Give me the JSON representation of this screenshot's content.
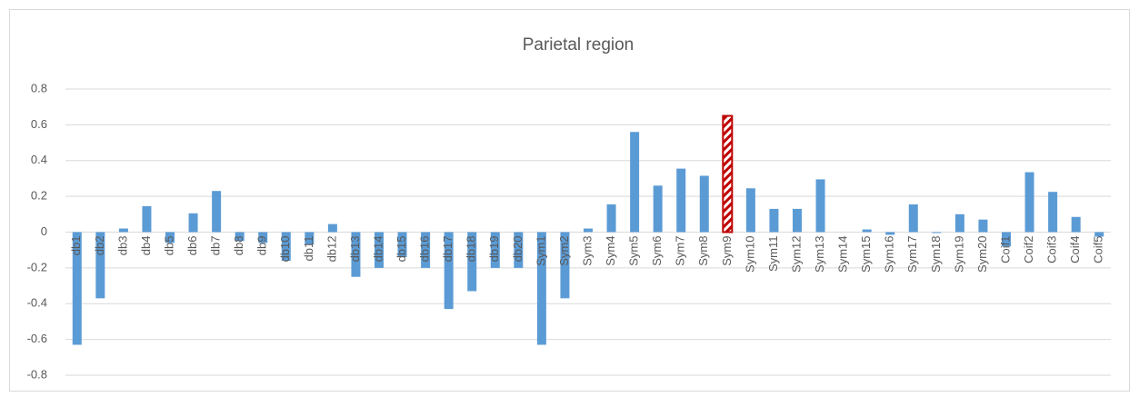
{
  "chart_data": {
    "type": "bar",
    "title": "Parietal region",
    "categories": [
      "db1",
      "db2",
      "db3",
      "db4",
      "db5",
      "db6",
      "db7",
      "db8",
      "db9",
      "db10",
      "db11",
      "db12",
      "db13",
      "db14",
      "db15",
      "db16",
      "db17",
      "db18",
      "db19",
      "db20",
      "Sym1",
      "Sym2",
      "Sym3",
      "Sym4",
      "Sym5",
      "Sym6",
      "Sym7",
      "Sym8",
      "Sym9",
      "Sym10",
      "Sym11",
      "Sym12",
      "Sym13",
      "Sym14",
      "Sym15",
      "Sym16",
      "Sym17",
      "Sym18",
      "Sym19",
      "Sym20",
      "Coif1",
      "Coif2",
      "Coif3",
      "Coif4",
      "Coif5"
    ],
    "values": [
      -0.63,
      -0.37,
      0.02,
      0.145,
      -0.06,
      0.105,
      0.23,
      -0.05,
      -0.06,
      -0.16,
      -0.07,
      0.045,
      -0.25,
      -0.2,
      -0.14,
      -0.2,
      -0.43,
      -0.33,
      -0.2,
      -0.2,
      -0.63,
      -0.37,
      0.02,
      0.155,
      0.56,
      0.26,
      0.355,
      0.315,
      0.65,
      0.245,
      0.13,
      0.13,
      0.295,
      0.0,
      0.015,
      -0.015,
      0.155,
      -0.005,
      0.1,
      0.07,
      -0.08,
      0.335,
      0.225,
      0.085,
      -0.025
    ],
    "colors": [
      "#5b9bd5",
      "#5b9bd5",
      "#5b9bd5",
      "#5b9bd5",
      "#5b9bd5",
      "#5b9bd5",
      "#5b9bd5",
      "#5b9bd5",
      "#5b9bd5",
      "#5b9bd5",
      "#5b9bd5",
      "#5b9bd5",
      "#5b9bd5",
      "#5b9bd5",
      "#5b9bd5",
      "#5b9bd5",
      "#5b9bd5",
      "#5b9bd5",
      "#5b9bd5",
      "#5b9bd5",
      "#5b9bd5",
      "#5b9bd5",
      "#5b9bd5",
      "#5b9bd5",
      "#5b9bd5",
      "#5b9bd5",
      "#5b9bd5",
      "#5b9bd5",
      "#c00000",
      "#5b9bd5",
      "#5b9bd5",
      "#5b9bd5",
      "#5b9bd5",
      "#5b9bd5",
      "#5b9bd5",
      "#5b9bd5",
      "#5b9bd5",
      "#5b9bd5",
      "#5b9bd5",
      "#5b9bd5",
      "#5b9bd5",
      "#5b9bd5",
      "#5b9bd5",
      "#5b9bd5",
      "#5b9bd5"
    ],
    "hatched_color": "#c00000",
    "ylim": [
      -0.8,
      0.8
    ],
    "yticks": [
      0.8,
      0.6,
      0.4,
      0.2,
      0,
      -0.2,
      -0.4,
      -0.6,
      -0.8
    ],
    "grid": true
  }
}
